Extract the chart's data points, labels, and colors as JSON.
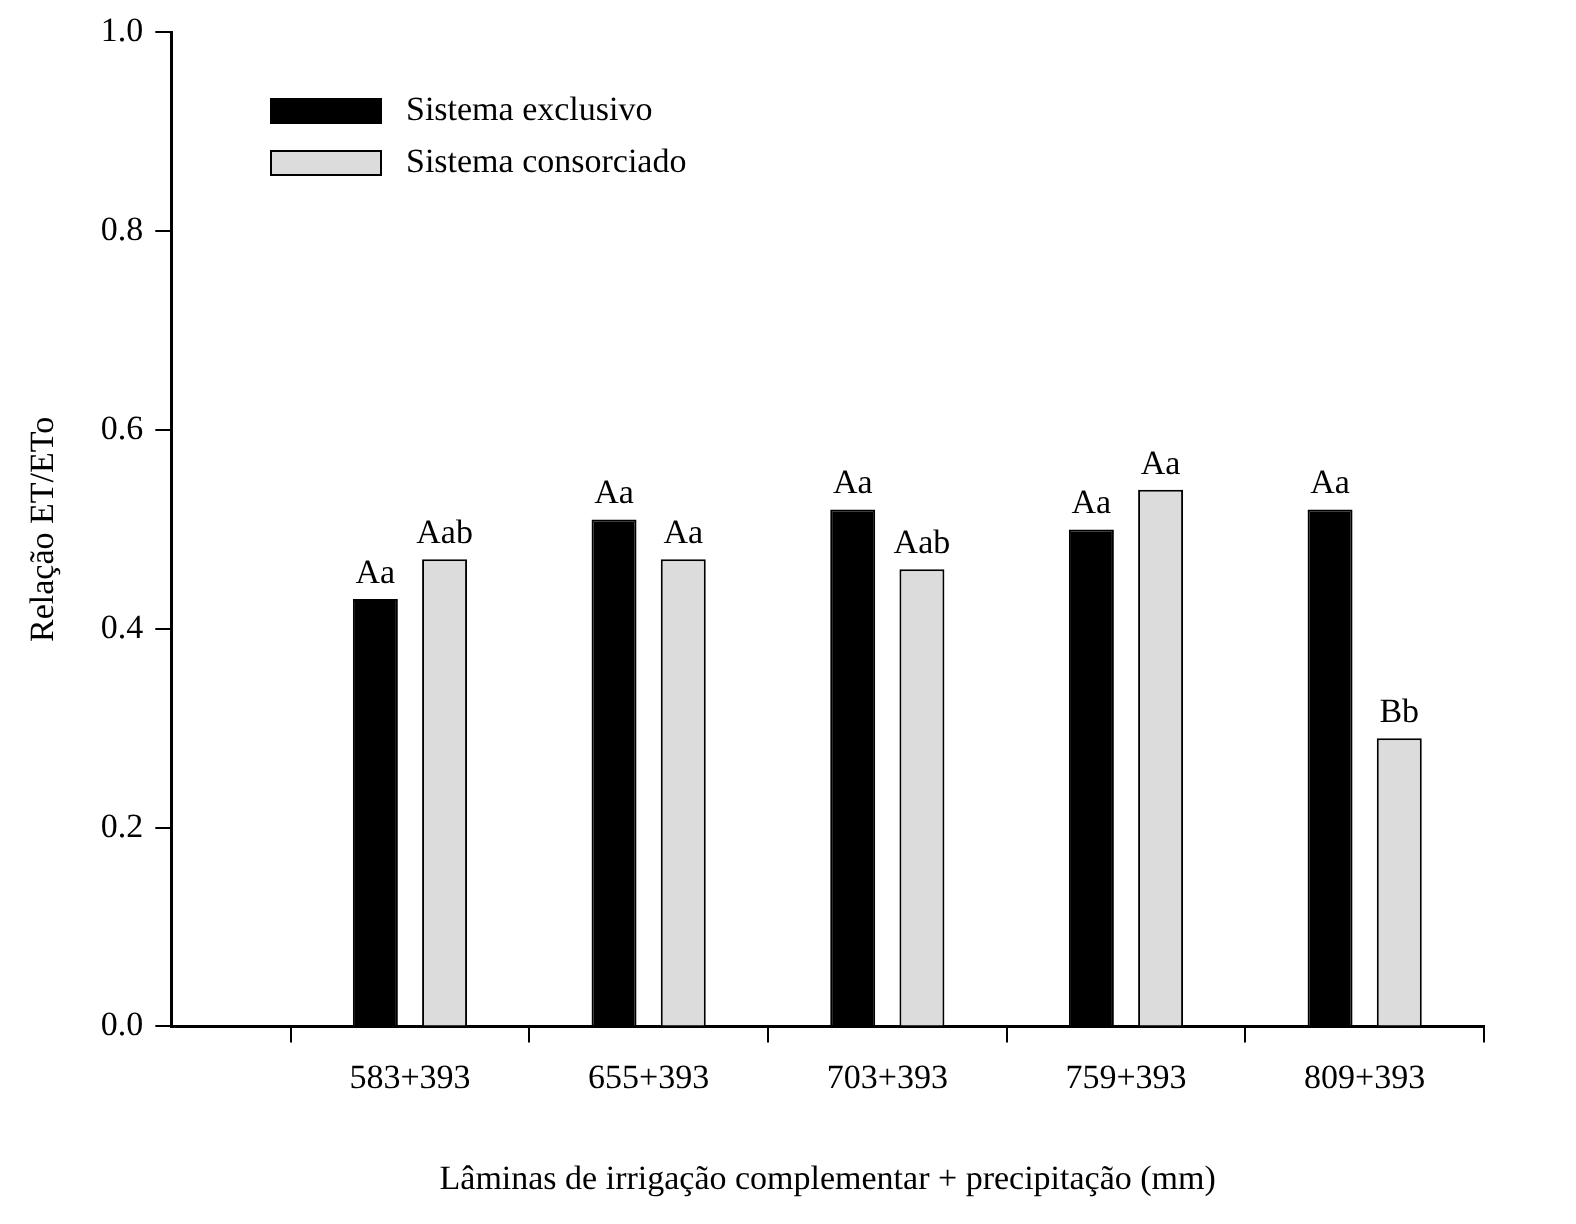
{
  "chart_data": {
    "type": "bar",
    "xlabel": "Lâminas de irrigação complementar + precipitação (mm)",
    "ylabel": "Relação ET/ETo",
    "categories": [
      "583+393",
      "655+393",
      "703+393",
      "759+393",
      "809+393"
    ],
    "series": [
      {
        "name": "Sistema exclusivo",
        "color": "#000000",
        "values": [
          0.43,
          0.51,
          0.52,
          0.5,
          0.52
        ],
        "value_labels": [
          "Aa",
          "Aa",
          "Aa",
          "Aa",
          "Aa"
        ]
      },
      {
        "name": "Sistema consorciado",
        "color": "#dcdcdc",
        "values": [
          0.47,
          0.47,
          0.46,
          0.54,
          0.29
        ],
        "value_labels": [
          "Aab",
          "Aa",
          "Aab",
          "Aa",
          "Bb"
        ]
      }
    ],
    "ylim": [
      0,
      1
    ],
    "yticks": [
      {
        "value": 0,
        "label": "0.0"
      },
      {
        "value": 0.2,
        "label": "0.2"
      },
      {
        "value": 0.4,
        "label": "0.4"
      },
      {
        "value": 0.6,
        "label": "0.6"
      },
      {
        "value": 0.8,
        "label": "0.8"
      },
      {
        "value": 1,
        "label": "1.0"
      }
    ],
    "grid": false,
    "legend": "top left"
  }
}
